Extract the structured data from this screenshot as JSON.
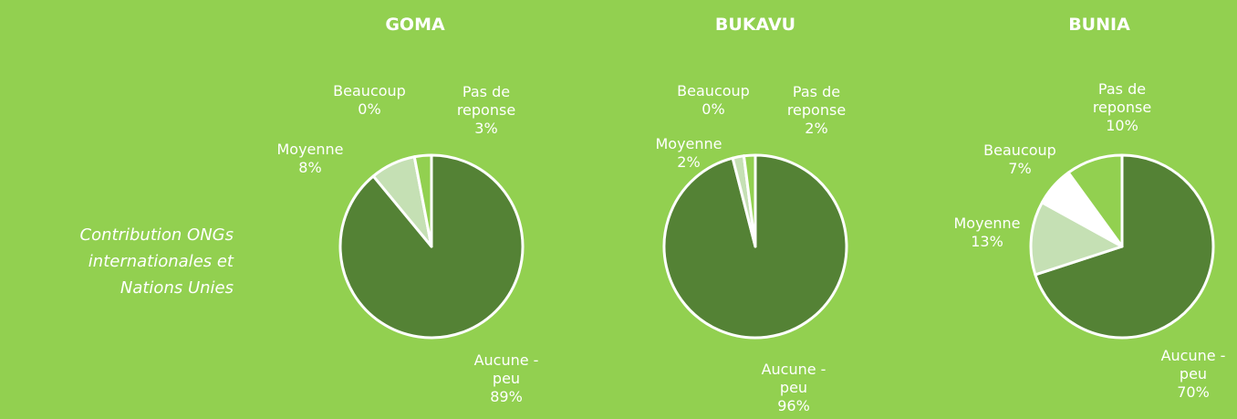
{
  "row_label": "Contribution ONGs internationales et Nations Unies",
  "chart_data": [
    {
      "type": "pie",
      "title": "GOMA",
      "categories": [
        "Aucune - peu",
        "Moyenne",
        "Beaucoup",
        "Pas de reponse"
      ],
      "values": [
        89,
        8,
        0,
        3
      ],
      "value_labels": [
        "89%",
        "8%",
        "0%",
        "3%"
      ],
      "colors": [
        "#548235",
        "#c5e0b4",
        "#ffffff",
        "#92d050"
      ]
    },
    {
      "type": "pie",
      "title": "BUKAVU",
      "categories": [
        "Aucune - peu",
        "Moyenne",
        "Beaucoup",
        "Pas de reponse"
      ],
      "values": [
        96,
        2,
        0,
        2
      ],
      "value_labels": [
        "96%",
        "2%",
        "0%",
        "2%"
      ],
      "colors": [
        "#548235",
        "#c5e0b4",
        "#ffffff",
        "#92d050"
      ]
    },
    {
      "type": "pie",
      "title": "BUNIA",
      "categories": [
        "Aucune - peu",
        "Moyenne",
        "Beaucoup",
        "Pas de reponse"
      ],
      "values": [
        70,
        13,
        7,
        10
      ],
      "value_labels": [
        "70%",
        "13%",
        "7%",
        "10%"
      ],
      "colors": [
        "#548235",
        "#c5e0b4",
        "#ffffff",
        "#92d050"
      ]
    }
  ]
}
